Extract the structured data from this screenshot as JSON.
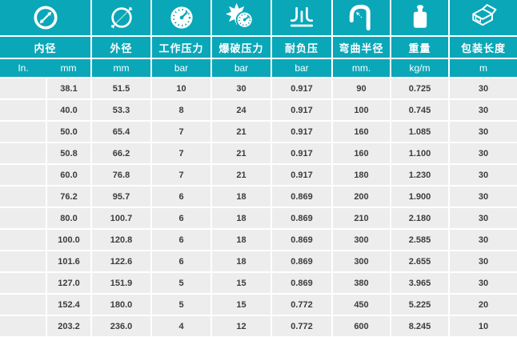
{
  "colors": {
    "teal": "#0aa7b8",
    "row_bg": "#ededed",
    "gap_white": "#ffffff",
    "cell_text": "#3c3c3c",
    "header_text": "#ffffff"
  },
  "table": {
    "columns": [
      {
        "label": "内径",
        "icon": "inner-diameter-icon",
        "units": [
          "In.",
          "mm"
        ]
      },
      {
        "label": "外径",
        "icon": "outer-diameter-icon",
        "unit": "mm"
      },
      {
        "label": "工作压力",
        "icon": "pressure-gauge-icon",
        "unit": "bar"
      },
      {
        "label": "爆破压力",
        "icon": "burst-pressure-icon",
        "unit": "bar"
      },
      {
        "label": "耐负压",
        "icon": "vacuum-resistance-icon",
        "unit": "bar"
      },
      {
        "label": "弯曲半径",
        "icon": "bend-radius-icon",
        "unit": "mm."
      },
      {
        "label": "重量",
        "icon": "weight-icon",
        "unit": "kg/m"
      },
      {
        "label": "包装长度",
        "icon": "package-box-icon",
        "unit": "m"
      }
    ],
    "rows": [
      [
        "",
        "38.1",
        "51.5",
        "10",
        "30",
        "0.917",
        "90",
        "0.725",
        "30"
      ],
      [
        "",
        "40.0",
        "53.3",
        "8",
        "24",
        "0.917",
        "100",
        "0.745",
        "30"
      ],
      [
        "",
        "50.0",
        "65.4",
        "7",
        "21",
        "0.917",
        "160",
        "1.085",
        "30"
      ],
      [
        "",
        "50.8",
        "66.2",
        "7",
        "21",
        "0.917",
        "160",
        "1.100",
        "30"
      ],
      [
        "",
        "60.0",
        "76.8",
        "7",
        "21",
        "0.917",
        "180",
        "1.230",
        "30"
      ],
      [
        "",
        "76.2",
        "95.7",
        "6",
        "18",
        "0.869",
        "200",
        "1.900",
        "30"
      ],
      [
        "",
        "80.0",
        "100.7",
        "6",
        "18",
        "0.869",
        "210",
        "2.180",
        "30"
      ],
      [
        "",
        "100.0",
        "120.8",
        "6",
        "18",
        "0.869",
        "300",
        "2.585",
        "30"
      ],
      [
        "",
        "101.6",
        "122.6",
        "6",
        "18",
        "0.869",
        "300",
        "2.655",
        "30"
      ],
      [
        "",
        "127.0",
        "151.9",
        "5",
        "15",
        "0.869",
        "380",
        "3.965",
        "30"
      ],
      [
        "",
        "152.4",
        "180.0",
        "5",
        "15",
        "0.772",
        "450",
        "5.225",
        "20"
      ],
      [
        "",
        "203.2",
        "236.0",
        "4",
        "12",
        "0.772",
        "600",
        "8.245",
        "10"
      ]
    ]
  }
}
